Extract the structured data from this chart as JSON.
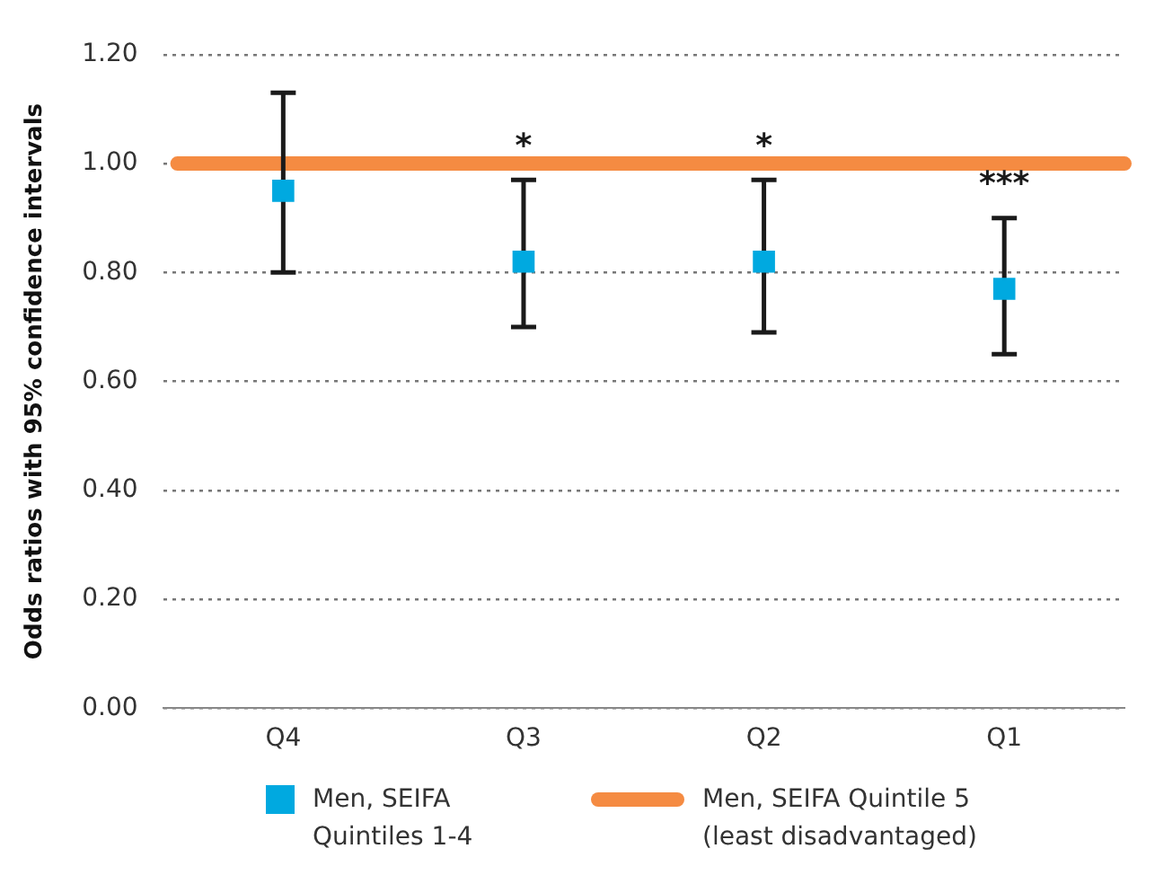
{
  "chart_data": {
    "type": "scatter",
    "ylabel": "Odds ratios with 95% confidence intervals",
    "categories": [
      "Q4",
      "Q3",
      "Q2",
      "Q1"
    ],
    "series": [
      {
        "name": "Men, SEIFA Quintiles 1-4",
        "color": "#00a9e0",
        "values": [
          0.95,
          0.82,
          0.82,
          0.77
        ],
        "errors": [
          [
            0.8,
            1.13
          ],
          [
            0.7,
            0.97
          ],
          [
            0.69,
            0.97
          ],
          [
            0.65,
            0.9
          ]
        ]
      }
    ],
    "ref_lines": [
      {
        "axis": "y",
        "value": 1.0,
        "label": "Men, SEIFA Quintile 5 (least disadvantaged)",
        "color": "#f58b42"
      }
    ],
    "annotations": [
      {
        "text": "*",
        "x": "Q3",
        "y": 0.97
      },
      {
        "text": "*",
        "x": "Q2",
        "y": 0.97
      },
      {
        "text": "***",
        "x": "Q1",
        "y": 0.9
      }
    ],
    "ylim": [
      0,
      1.2
    ],
    "yticks": [
      {
        "value": 0,
        "label": "0.00"
      },
      {
        "value": 0.2,
        "label": "0.20"
      },
      {
        "value": 0.4,
        "label": "0.40"
      },
      {
        "value": 0.6,
        "label": "0.60"
      },
      {
        "value": 0.8,
        "label": "0.80"
      },
      {
        "value": 1.0,
        "label": "1.00"
      },
      {
        "value": 1.2,
        "label": "1.20"
      }
    ],
    "grid": "y",
    "marker": "square",
    "legend": "bottom"
  }
}
